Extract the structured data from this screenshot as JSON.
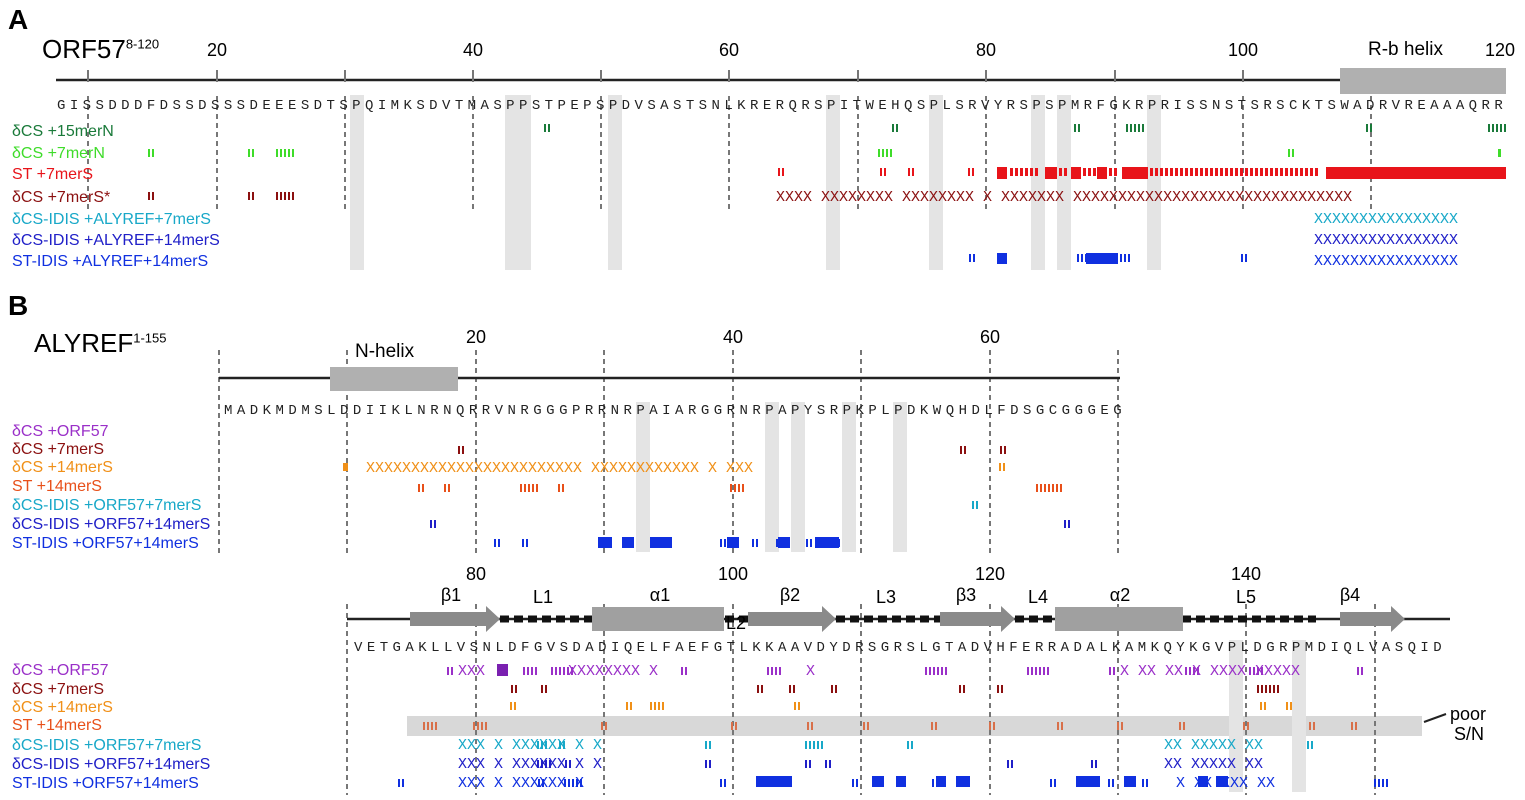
{
  "panel_a": {
    "letter": "A",
    "title": "ORF57",
    "title_range": "8-120",
    "ticks": [
      "20",
      "40",
      "60",
      "80",
      "100",
      "120"
    ],
    "helix_label": "R-b helix",
    "sequence": "GISSDDDFDSSDSSSDEEESDTSPQIMKSDVTMASPPSTPEPSPDVSASTSNLKRERQRSPITWEHQSPLSRVYRSPSPMRFGKRPRISSNSTSRSCKTSWADRVREAAAQRR",
    "rows": [
      {
        "label": "δCS +15merN",
        "color": "#1a7a3a"
      },
      {
        "label": "δCS +7merN",
        "color": "#3fdc2a"
      },
      {
        "label": "ST +7merS",
        "color": "#e8141a"
      },
      {
        "label": "δCS +7merS*",
        "color": "#8b1010"
      },
      {
        "label": "δCS-IDIS +ALYREF+7merS",
        "color": "#18a8c8"
      },
      {
        "label": "δCS-IDIS +ALYREF+14merS",
        "color": "#2020c8"
      },
      {
        "label": "ST-IDIS +ALYREF+14merS",
        "color": "#1030e0"
      }
    ]
  },
  "panel_b": {
    "letter": "B",
    "title": "ALYREF",
    "title_range": "1-155",
    "ticks_top": [
      "20",
      "40",
      "60"
    ],
    "helix_label": "N-helix",
    "sequence_top": "MADKMDMSLDDIIKLNRNQRRVNRGGGPRRNRPAIARGGRNRPAPYSRPKPLPDKWQHDLFDSGCGGGEG",
    "rows_top": [
      {
        "label": "δCS +ORF57",
        "color": "#9a30c8"
      },
      {
        "label": "δCS +7merS",
        "color": "#8b1010"
      },
      {
        "label": "δCS +14merS",
        "color": "#f09018"
      },
      {
        "label": "ST +14merS",
        "color": "#e8501a"
      },
      {
        "label": "δCS-IDIS +ORF57+7merS",
        "color": "#18a8c8"
      },
      {
        "label": "δCS-IDIS +ORF57+14merS",
        "color": "#2020c8"
      },
      {
        "label": "ST-IDIS +ORF57+14merS",
        "color": "#1030e0"
      }
    ],
    "ticks_bottom": [
      "80",
      "100",
      "120",
      "140"
    ],
    "elements": [
      "β1",
      "L1",
      "α1",
      "L2",
      "β2",
      "L3",
      "β3",
      "L4",
      "α2",
      "L5",
      "β4"
    ],
    "sequence_bottom": "VETGAKLLVSNLDFGVSDADIQELFAEFGTLKKAAVDYDRSGRSLGTADVHFERRADALKAMKQYKGVPLDGRPMDIQLVASQID",
    "rows_bottom": [
      {
        "label": "δCS +ORF57",
        "color": "#9a30c8"
      },
      {
        "label": "δCS +7merS",
        "color": "#8b1010"
      },
      {
        "label": "δCS +14merS",
        "color": "#f09018"
      },
      {
        "label": "ST +14merS",
        "color": "#e8501a"
      },
      {
        "label": "δCS-IDIS +ORF57+7merS",
        "color": "#18a8c8"
      },
      {
        "label": "δCS-IDIS +ORF57+14merS",
        "color": "#2020c8"
      },
      {
        "label": "ST-IDIS +ORF57+14merS",
        "color": "#1030e0"
      }
    ],
    "poor_label_1": "poor",
    "poor_label_2": "S/N"
  }
}
